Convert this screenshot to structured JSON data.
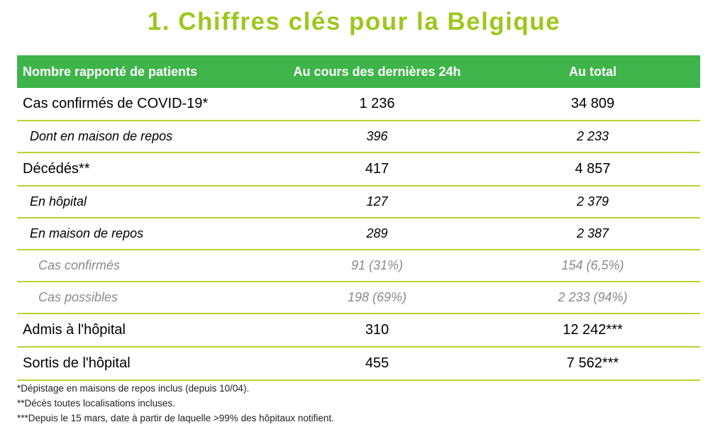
{
  "title": "1. Chiffres clés pour la Belgique",
  "table": {
    "headers": [
      "Nombre rapporté de patients",
      "Au cours des dernières 24h",
      "Au total"
    ],
    "rows": [
      {
        "label": "Cas confirmés de COVID-19*",
        "last24h": "1 236",
        "total": "34 809",
        "level": "main"
      },
      {
        "label": "Dont en maison de repos",
        "last24h": "396",
        "total": "2 233",
        "level": "sub"
      },
      {
        "label": "Décédés**",
        "last24h": "417",
        "total": "4 857",
        "level": "main"
      },
      {
        "label": "En hôpital",
        "last24h": "127",
        "total": "2 379",
        "level": "sub"
      },
      {
        "label": "En maison de repos",
        "last24h": "289",
        "total": "2 387",
        "level": "sub"
      },
      {
        "label": "Cas confirmés",
        "last24h": "91 (31%)",
        "total": "154 (6,5%)",
        "level": "subsub"
      },
      {
        "label": "Cas possibles",
        "last24h": "198 (69%)",
        "total": "2 233 (94%)",
        "level": "subsub"
      },
      {
        "label": "Admis à l'hôpital",
        "last24h": "310",
        "total": "12 242***",
        "level": "main"
      },
      {
        "label": "Sortis de l'hôpital",
        "last24h": "455",
        "total": "7 562***",
        "level": "main"
      }
    ]
  },
  "footnotes": [
    "*Dépistage en maisons de repos inclus (depuis 10/04).",
    "**Décès toutes localisations incluses.",
    "***Depuis le 15 mars, date à partir de laquelle >99% des hôpitaux notifient."
  ],
  "colors": {
    "title": "#9dc71e",
    "header_bg": "#3fb44a",
    "row_border": "#b6d532",
    "muted_text": "#8a8a8a"
  }
}
